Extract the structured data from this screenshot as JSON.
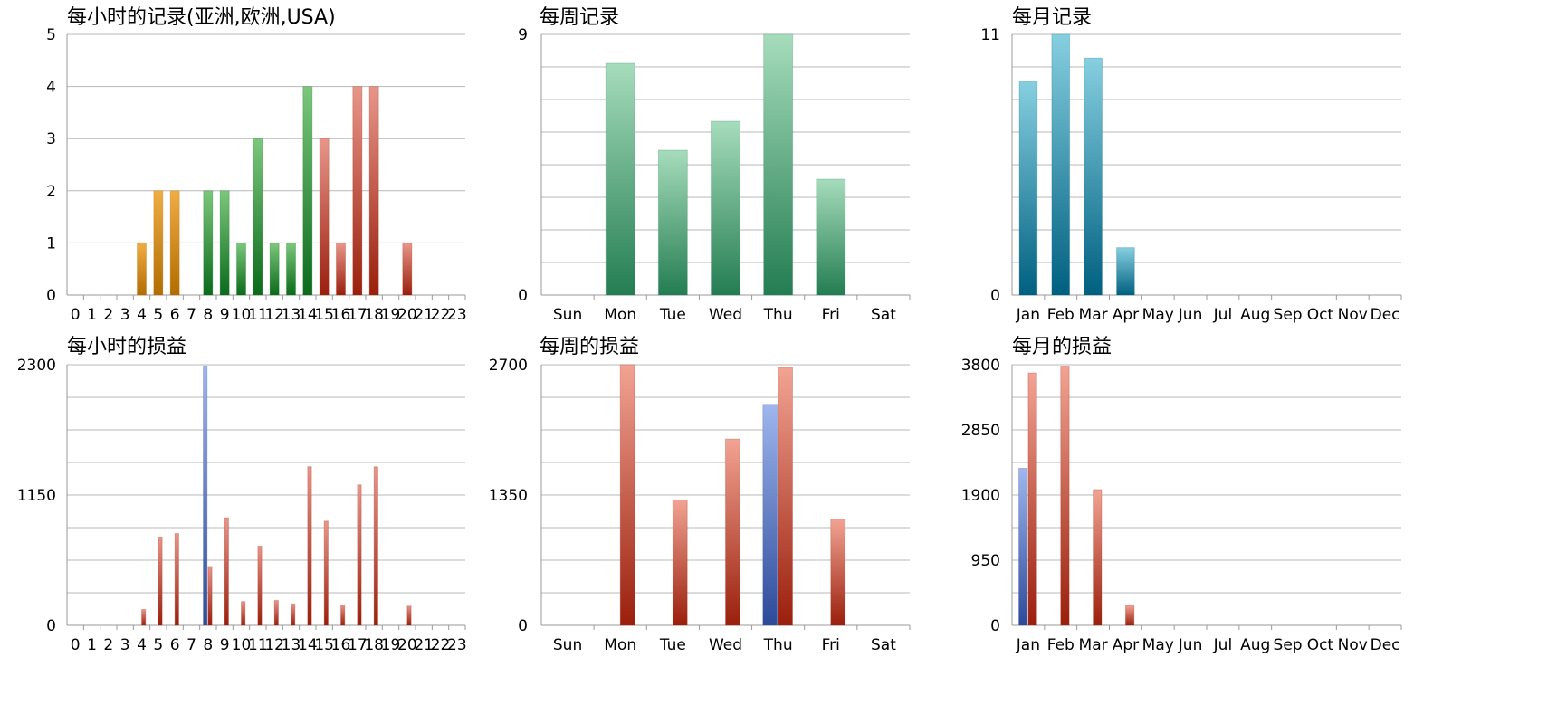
{
  "colors": {
    "orange": [
      "#f0ad45",
      "#b26c00"
    ],
    "green": [
      "#7cc77c",
      "#0b6a1b"
    ],
    "red": [
      "#e8968a",
      "#9a1f0c"
    ],
    "seagreen": [
      "#a6dcbc",
      "#247d52"
    ],
    "teal": [
      "#86cfe0",
      "#006080"
    ],
    "blue": [
      "#9fb6ee",
      "#2d4a99"
    ],
    "salmon": [
      "#f2a393",
      "#9a1f0c"
    ]
  },
  "chart_data": [
    {
      "id": "hourly-records",
      "type": "bar",
      "title": "每小时的记录(亚洲,欧洲,USA)",
      "categories": [
        "0",
        "1",
        "2",
        "3",
        "4",
        "5",
        "6",
        "7",
        "8",
        "9",
        "10",
        "11",
        "12",
        "13",
        "14",
        "15",
        "16",
        "17",
        "18",
        "19",
        "20",
        "21",
        "22",
        "23"
      ],
      "ylim": [
        0,
        5
      ],
      "yticks": [
        0,
        1,
        2,
        3,
        4,
        5
      ],
      "minor_grid": false,
      "grid": true,
      "series": [
        {
          "values": [
            0,
            0,
            0,
            0,
            1,
            2,
            2,
            0,
            2,
            2,
            1,
            3,
            1,
            1,
            4,
            3,
            1,
            4,
            4,
            0,
            1,
            0,
            0,
            0
          ],
          "bar_colors": [
            "orange",
            "orange",
            "orange",
            "orange",
            "orange",
            "orange",
            "orange",
            "orange",
            "green",
            "green",
            "green",
            "green",
            "green",
            "green",
            "green",
            "red",
            "red",
            "red",
            "red",
            "red",
            "red",
            "red",
            "red",
            "red"
          ]
        }
      ]
    },
    {
      "id": "weekly-records",
      "type": "bar",
      "title": "每周记录",
      "categories": [
        "Sun",
        "Mon",
        "Tue",
        "Wed",
        "Thu",
        "Fri",
        "Sat"
      ],
      "ylim": [
        0,
        9
      ],
      "yticks": [
        0,
        9
      ],
      "minor_grid": true,
      "grid": true,
      "series": [
        {
          "values": [
            0,
            8,
            5,
            6,
            9,
            4,
            0
          ],
          "color": "seagreen"
        }
      ]
    },
    {
      "id": "monthly-records",
      "type": "bar",
      "title": "每月记录",
      "categories": [
        "Jan",
        "Feb",
        "Mar",
        "Apr",
        "May",
        "Jun",
        "Jul",
        "Aug",
        "Sep",
        "Oct",
        "Nov",
        "Dec"
      ],
      "ylim": [
        0,
        11
      ],
      "yticks": [
        0,
        11
      ],
      "minor_grid": true,
      "grid": true,
      "series": [
        {
          "values": [
            9,
            11,
            10,
            2,
            0,
            0,
            0,
            0,
            0,
            0,
            0,
            0
          ],
          "color": "teal"
        }
      ]
    },
    {
      "id": "hourly-pnl",
      "type": "bar",
      "title": "每小时的损益",
      "categories": [
        "0",
        "1",
        "2",
        "3",
        "4",
        "5",
        "6",
        "7",
        "8",
        "9",
        "10",
        "11",
        "12",
        "13",
        "14",
        "15",
        "16",
        "17",
        "18",
        "19",
        "20",
        "21",
        "22",
        "23"
      ],
      "ylim": [
        0,
        2300
      ],
      "yticks": [
        0,
        1150,
        2300
      ],
      "minor_grid": true,
      "grid": true,
      "series": [
        {
          "values": [
            0,
            0,
            0,
            0,
            0,
            0,
            0,
            0,
            2290,
            0,
            0,
            0,
            0,
            0,
            0,
            0,
            0,
            0,
            0,
            0,
            0,
            0,
            0,
            0
          ],
          "color": "blue"
        },
        {
          "values": [
            0,
            0,
            0,
            0,
            140,
            780,
            810,
            0,
            520,
            950,
            210,
            700,
            220,
            190,
            1400,
            920,
            180,
            1240,
            1400,
            0,
            170,
            0,
            0,
            0
          ],
          "color": "red"
        }
      ]
    },
    {
      "id": "weekly-pnl",
      "type": "bar",
      "title": "每周的损益",
      "categories": [
        "Sun",
        "Mon",
        "Tue",
        "Wed",
        "Thu",
        "Fri",
        "Sat"
      ],
      "ylim": [
        0,
        2700
      ],
      "yticks": [
        0,
        1350,
        2700
      ],
      "minor_grid": true,
      "grid": true,
      "series": [
        {
          "values": [
            0,
            0,
            0,
            0,
            2290,
            0,
            0
          ],
          "color": "blue"
        },
        {
          "values": [
            0,
            2700,
            1300,
            1930,
            2670,
            1100,
            0
          ],
          "color": "salmon"
        }
      ]
    },
    {
      "id": "monthly-pnl",
      "type": "bar",
      "title": "每月的损益",
      "categories": [
        "Jan",
        "Feb",
        "Mar",
        "Apr",
        "May",
        "Jun",
        "Jul",
        "Aug",
        "Sep",
        "Oct",
        "Nov",
        "Dec"
      ],
      "ylim": [
        0,
        3800
      ],
      "yticks": [
        0,
        950,
        1900,
        2850,
        3800
      ],
      "minor_grid": true,
      "grid": true,
      "series": [
        {
          "values": [
            2290,
            0,
            0,
            0,
            0,
            0,
            0,
            0,
            0,
            0,
            0,
            0
          ],
          "color": "blue"
        },
        {
          "values": [
            3680,
            3780,
            1980,
            290,
            0,
            0,
            0,
            0,
            0,
            0,
            0,
            0
          ],
          "color": "salmon"
        }
      ]
    }
  ]
}
